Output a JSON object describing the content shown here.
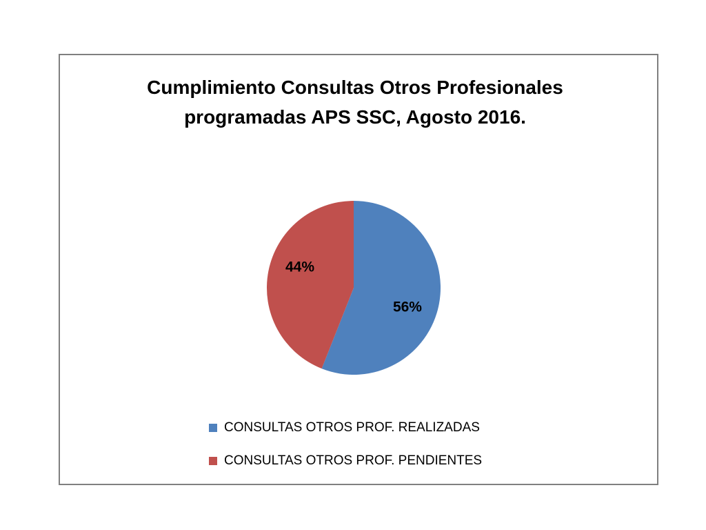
{
  "chart_data": {
    "type": "pie",
    "title": "Cumplimiento Consultas Otros Profesionales programadas APS SSC, Agosto 2016.",
    "categories": [
      "CONSULTAS OTROS PROF. REALIZADAS",
      "CONSULTAS OTROS PROF. PENDIENTES"
    ],
    "values": [
      56,
      44
    ],
    "value_labels": [
      "56%",
      "44%"
    ],
    "colors": [
      "#4f81bd",
      "#c0504d"
    ],
    "legend": "bottom"
  }
}
